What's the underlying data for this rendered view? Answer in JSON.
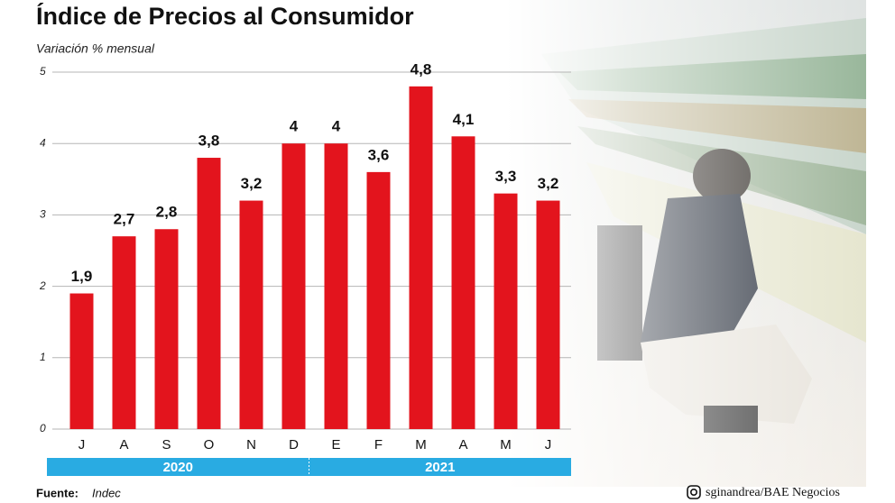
{
  "chart_data": {
    "type": "bar",
    "title": "Índice de Precios al Consumidor",
    "subtitle": "Variación % mensual",
    "categories": [
      "J",
      "A",
      "S",
      "O",
      "N",
      "D",
      "E",
      "F",
      "M",
      "A",
      "M",
      "J"
    ],
    "values": [
      1.9,
      2.7,
      2.8,
      3.8,
      3.2,
      4,
      4,
      3.6,
      4.8,
      4.1,
      3.3,
      3.2
    ],
    "value_labels": [
      "1,9",
      "2,7",
      "2,8",
      "3,8",
      "3,2",
      "4",
      "4",
      "3,6",
      "4,8",
      "4,1",
      "3,3",
      "3,2"
    ],
    "color": "#e3141d",
    "ylim": [
      0,
      5
    ],
    "yticks": [
      0,
      1,
      2,
      3,
      4,
      5
    ],
    "grid": true,
    "groups": [
      "2020",
      "2021"
    ],
    "source_label": "Fuente:",
    "source": "Indec",
    "credit": "sginandrea/BAE Negocios"
  }
}
